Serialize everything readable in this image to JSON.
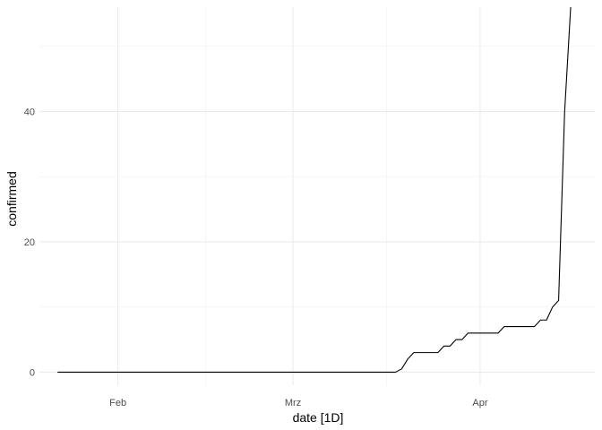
{
  "chart_data": {
    "type": "line",
    "xlabel": "date [1D]",
    "ylabel": "confirmed",
    "x_ticks": [
      {
        "date": "2020-02-01",
        "label": "Feb"
      },
      {
        "date": "2020-03-01",
        "label": "Mrz"
      },
      {
        "date": "2020-04-01",
        "label": "Apr"
      }
    ],
    "y_ticks": [
      0,
      20,
      40
    ],
    "xlim": [
      "2020-01-19",
      "2020-04-20"
    ],
    "ylim": [
      -2,
      56
    ],
    "grid": true,
    "line_color": "#000000",
    "series": [
      {
        "points": [
          [
            "2020-01-22",
            0
          ],
          [
            "2020-02-25",
            0
          ],
          [
            "2020-03-18",
            0
          ],
          [
            "2020-03-19",
            0.5
          ],
          [
            "2020-03-20",
            2
          ],
          [
            "2020-03-21",
            3
          ],
          [
            "2020-03-22",
            3
          ],
          [
            "2020-03-24",
            3
          ],
          [
            "2020-03-25",
            3
          ],
          [
            "2020-03-26",
            4
          ],
          [
            "2020-03-27",
            4
          ],
          [
            "2020-03-28",
            5
          ],
          [
            "2020-03-29",
            5
          ],
          [
            "2020-03-30",
            6
          ],
          [
            "2020-04-01",
            6
          ],
          [
            "2020-04-03",
            6
          ],
          [
            "2020-04-04",
            6
          ],
          [
            "2020-04-05",
            7
          ],
          [
            "2020-04-07",
            7
          ],
          [
            "2020-04-09",
            7
          ],
          [
            "2020-04-10",
            7
          ],
          [
            "2020-04-11",
            8
          ],
          [
            "2020-04-12",
            8
          ],
          [
            "2020-04-13",
            10
          ],
          [
            "2020-04-14",
            11
          ],
          [
            "2020-04-15",
            40
          ],
          [
            "2020-04-16",
            56
          ]
        ]
      }
    ]
  }
}
